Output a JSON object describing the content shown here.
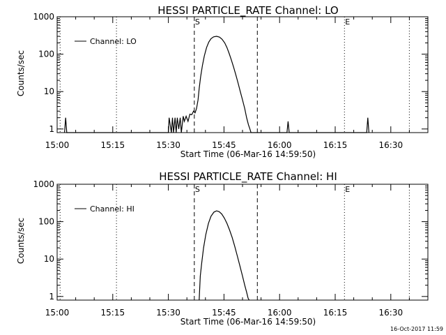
{
  "footer": {
    "timestamp": "16-Oct-2017 11:59"
  },
  "chart_data": [
    {
      "type": "line",
      "title": "HESSI PARTICLE_RATE Channel: LO",
      "xlabel": "Start Time (06-Mar-16 14:59:50)",
      "ylabel": "Counts/sec",
      "yscale": "log",
      "xlim": [
        0,
        100
      ],
      "ylim": [
        0.8,
        1000
      ],
      "xticks": [
        0,
        15,
        30,
        45,
        60,
        75,
        90
      ],
      "xticklabels": [
        "15:00",
        "15:15",
        "15:30",
        "15:45",
        "16:00",
        "16:15",
        "16:30"
      ],
      "yticks": [
        1,
        10,
        100,
        1000
      ],
      "yticklabels": [
        "1",
        "10",
        "100",
        "1000"
      ],
      "legend": [
        "Channel: LO"
      ],
      "vlines": [
        {
          "x": 16,
          "style": "dotted",
          "label": ""
        },
        {
          "x": 37,
          "style": "dashed",
          "label": "S"
        },
        {
          "x": 54,
          "style": "dashed",
          "label": ""
        },
        {
          "x": 77.5,
          "style": "dotted",
          "label": "E"
        },
        {
          "x": 95,
          "style": "dotted",
          "label": ""
        },
        {
          "x": 0.8,
          "style": "dotted",
          "label": ""
        }
      ],
      "series": [
        {
          "name": "Channel: LO",
          "x": [
            2.0,
            2.3,
            2.6,
            30.0,
            30.2,
            30.8,
            31.1,
            31.4,
            31.8,
            32.1,
            32.4,
            32.8,
            33.2,
            33.5,
            34.0,
            34.3,
            34.8,
            35.3,
            35.8,
            36.3,
            36.8,
            37.2,
            37.6,
            38.0,
            38.3,
            38.7,
            39.2,
            39.7,
            40.3,
            40.9,
            41.5,
            42.2,
            43.0,
            43.8,
            44.5,
            45.2,
            45.8,
            46.4,
            47.0,
            47.6,
            48.2,
            48.8,
            49.4,
            50.0,
            50.6,
            51.1,
            51.6,
            52.0,
            52.3,
            62.0,
            62.3,
            62.6,
            83.5,
            83.8,
            84.1
          ],
          "y": [
            0.8,
            2.0,
            0.8,
            0.8,
            2.0,
            0.8,
            2.0,
            0.8,
            2.0,
            0.8,
            2.0,
            1.0,
            2.0,
            0.8,
            2.2,
            1.6,
            2.2,
            1.6,
            2.5,
            2.4,
            3.0,
            2.7,
            3.5,
            6.0,
            12,
            25,
            50,
            90,
            150,
            210,
            260,
            290,
            300,
            285,
            250,
            200,
            150,
            105,
            70,
            45,
            28,
            17,
            10,
            6,
            3.5,
            2.0,
            1.3,
            1.0,
            0.8,
            0.8,
            1.6,
            0.8,
            0.8,
            2.0,
            0.8
          ]
        }
      ]
    },
    {
      "type": "line",
      "title": "HESSI PARTICLE_RATE Channel: HI",
      "xlabel": "Start Time (06-Mar-16 14:59:50)",
      "ylabel": "Counts/sec",
      "yscale": "log",
      "xlim": [
        0,
        100
      ],
      "ylim": [
        0.8,
        1000
      ],
      "xticks": [
        0,
        15,
        30,
        45,
        60,
        75,
        90
      ],
      "xticklabels": [
        "15:00",
        "15:15",
        "15:30",
        "15:45",
        "16:00",
        "16:15",
        "16:30"
      ],
      "yticks": [
        1,
        10,
        100,
        1000
      ],
      "yticklabels": [
        "1",
        "10",
        "100",
        "1000"
      ],
      "legend": [
        "Channel: HI"
      ],
      "vlines": [
        {
          "x": 16,
          "style": "dotted",
          "label": ""
        },
        {
          "x": 37,
          "style": "dashed",
          "label": "S"
        },
        {
          "x": 54,
          "style": "dashed",
          "label": ""
        },
        {
          "x": 77.5,
          "style": "dotted",
          "label": "E"
        },
        {
          "x": 95,
          "style": "dotted",
          "label": ""
        },
        {
          "x": 0.8,
          "style": "dotted",
          "label": ""
        }
      ],
      "series": [
        {
          "name": "Channel: HI",
          "x": [
            38.3,
            38.6,
            39.0,
            39.5,
            40.1,
            40.8,
            41.5,
            42.3,
            43.0,
            43.7,
            44.4,
            45.1,
            45.8,
            46.5,
            47.2,
            47.9,
            48.6,
            49.3,
            50.0,
            50.6,
            51.1,
            51.5,
            51.8
          ],
          "y": [
            0.8,
            3.5,
            8,
            20,
            45,
            90,
            140,
            180,
            195,
            185,
            160,
            125,
            90,
            60,
            38,
            22,
            12,
            6.5,
            3.5,
            2.0,
            1.3,
            0.9,
            0.8
          ]
        }
      ]
    }
  ]
}
